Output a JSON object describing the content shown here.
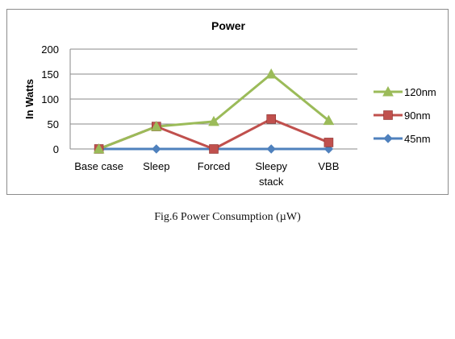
{
  "chart_data": {
    "type": "line",
    "title": "Power",
    "xlabel": "",
    "ylabel": "In Watts",
    "categories": [
      "Base case",
      "Sleep",
      "Forced",
      "Sleepy stack",
      "VBB"
    ],
    "ylim": [
      0,
      200
    ],
    "yticks": [
      0,
      50,
      100,
      150,
      200
    ],
    "grid": true,
    "legend_position": "right",
    "series": [
      {
        "name": "120nm",
        "values": [
          0,
          45,
          55,
          150,
          57
        ],
        "color": "#9bbb59",
        "marker": "triangle"
      },
      {
        "name": "90nm",
        "values": [
          0,
          45,
          0,
          60,
          13
        ],
        "color": "#c0504d",
        "marker": "square"
      },
      {
        "name": "45nm",
        "values": [
          0,
          0,
          0,
          0,
          0
        ],
        "color": "#4f81bd",
        "marker": "diamond"
      }
    ]
  },
  "caption": "Fig.6 Power Consumption (µW)"
}
